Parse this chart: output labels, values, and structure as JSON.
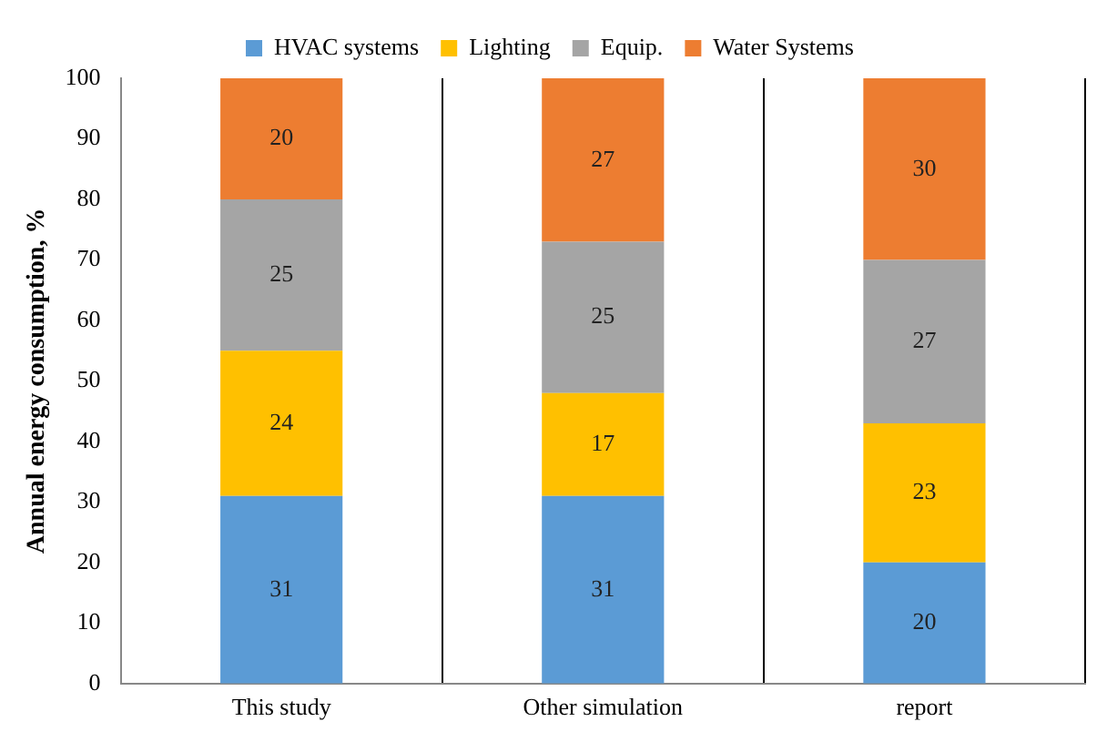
{
  "chart_data": {
    "type": "bar",
    "stacked": true,
    "ylabel": "Annual energy consumption, %",
    "categories": [
      "This study",
      "Other simulation",
      "report"
    ],
    "series": [
      {
        "name": "HVAC systems",
        "color": "#5b9bd5",
        "values": [
          31,
          31,
          20
        ]
      },
      {
        "name": "Lighting",
        "color": "#ffc000",
        "values": [
          24,
          17,
          23
        ]
      },
      {
        "name": "Equip.",
        "color": "#a5a5a5",
        "values": [
          25,
          25,
          27
        ]
      },
      {
        "name": "Water Systems",
        "color": "#ed7d31",
        "values": [
          20,
          27,
          30
        ]
      }
    ],
    "ylim": [
      0,
      100
    ],
    "yticks": [
      0,
      10,
      20,
      30,
      40,
      50,
      60,
      70,
      80,
      90,
      100
    ],
    "grid": "x",
    "legend": "top",
    "data_labels": true
  }
}
